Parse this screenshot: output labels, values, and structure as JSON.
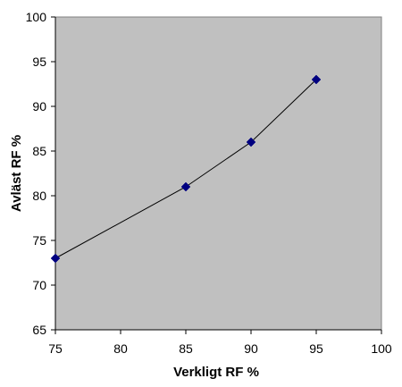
{
  "chart_data": {
    "type": "line",
    "title": "",
    "xlabel": "Verkligt RF %",
    "ylabel": "Avläst RF %",
    "xlim": [
      75,
      100
    ],
    "ylim": [
      65,
      100
    ],
    "xticks": [
      75,
      80,
      85,
      90,
      95,
      100
    ],
    "yticks": [
      65,
      70,
      75,
      80,
      85,
      90,
      95,
      100
    ],
    "x": [
      75,
      85,
      90,
      95
    ],
    "y": [
      73,
      81,
      86,
      93
    ],
    "grid": false,
    "legend": "none",
    "colors": {
      "plot_background": "#c0c0c0",
      "line": "#000000",
      "marker": "#000080"
    }
  }
}
